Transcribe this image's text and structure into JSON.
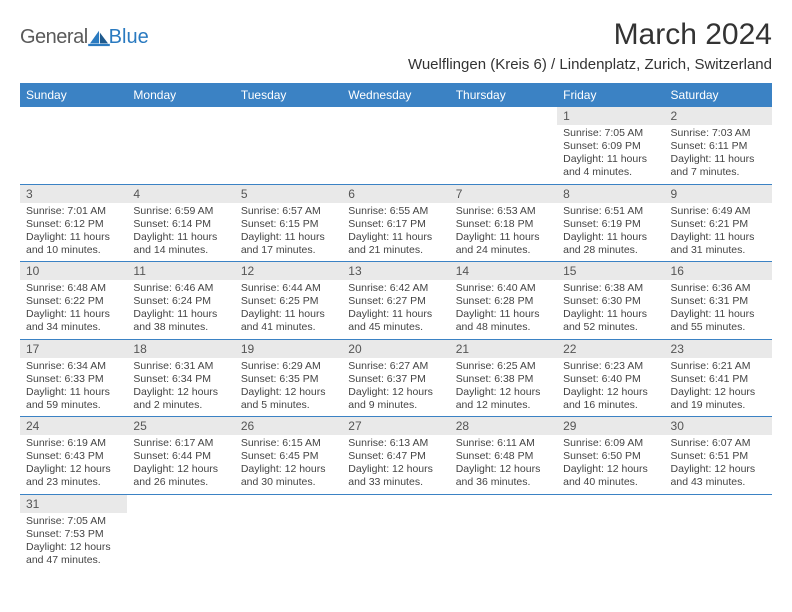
{
  "logo": {
    "text1": "General",
    "text2": "Blue"
  },
  "title": "March 2024",
  "subtitle": "Wuelflingen (Kreis 6) / Lindenplatz, Zurich, Switzerland",
  "colors": {
    "header_bg": "#3b82c4",
    "header_fg": "#ffffff",
    "daynum_bg": "#e9e9e9",
    "border": "#3b82c4",
    "logo_gray": "#5a5a5a",
    "logo_blue": "#2a7ac0"
  },
  "dayHeaders": [
    "Sunday",
    "Monday",
    "Tuesday",
    "Wednesday",
    "Thursday",
    "Friday",
    "Saturday"
  ],
  "weeks": [
    [
      null,
      null,
      null,
      null,
      null,
      {
        "n": "1",
        "sr": "Sunrise: 7:05 AM",
        "ss": "Sunset: 6:09 PM",
        "dl": "Daylight: 11 hours and 4 minutes."
      },
      {
        "n": "2",
        "sr": "Sunrise: 7:03 AM",
        "ss": "Sunset: 6:11 PM",
        "dl": "Daylight: 11 hours and 7 minutes."
      }
    ],
    [
      {
        "n": "3",
        "sr": "Sunrise: 7:01 AM",
        "ss": "Sunset: 6:12 PM",
        "dl": "Daylight: 11 hours and 10 minutes."
      },
      {
        "n": "4",
        "sr": "Sunrise: 6:59 AM",
        "ss": "Sunset: 6:14 PM",
        "dl": "Daylight: 11 hours and 14 minutes."
      },
      {
        "n": "5",
        "sr": "Sunrise: 6:57 AM",
        "ss": "Sunset: 6:15 PM",
        "dl": "Daylight: 11 hours and 17 minutes."
      },
      {
        "n": "6",
        "sr": "Sunrise: 6:55 AM",
        "ss": "Sunset: 6:17 PM",
        "dl": "Daylight: 11 hours and 21 minutes."
      },
      {
        "n": "7",
        "sr": "Sunrise: 6:53 AM",
        "ss": "Sunset: 6:18 PM",
        "dl": "Daylight: 11 hours and 24 minutes."
      },
      {
        "n": "8",
        "sr": "Sunrise: 6:51 AM",
        "ss": "Sunset: 6:19 PM",
        "dl": "Daylight: 11 hours and 28 minutes."
      },
      {
        "n": "9",
        "sr": "Sunrise: 6:49 AM",
        "ss": "Sunset: 6:21 PM",
        "dl": "Daylight: 11 hours and 31 minutes."
      }
    ],
    [
      {
        "n": "10",
        "sr": "Sunrise: 6:48 AM",
        "ss": "Sunset: 6:22 PM",
        "dl": "Daylight: 11 hours and 34 minutes."
      },
      {
        "n": "11",
        "sr": "Sunrise: 6:46 AM",
        "ss": "Sunset: 6:24 PM",
        "dl": "Daylight: 11 hours and 38 minutes."
      },
      {
        "n": "12",
        "sr": "Sunrise: 6:44 AM",
        "ss": "Sunset: 6:25 PM",
        "dl": "Daylight: 11 hours and 41 minutes."
      },
      {
        "n": "13",
        "sr": "Sunrise: 6:42 AM",
        "ss": "Sunset: 6:27 PM",
        "dl": "Daylight: 11 hours and 45 minutes."
      },
      {
        "n": "14",
        "sr": "Sunrise: 6:40 AM",
        "ss": "Sunset: 6:28 PM",
        "dl": "Daylight: 11 hours and 48 minutes."
      },
      {
        "n": "15",
        "sr": "Sunrise: 6:38 AM",
        "ss": "Sunset: 6:30 PM",
        "dl": "Daylight: 11 hours and 52 minutes."
      },
      {
        "n": "16",
        "sr": "Sunrise: 6:36 AM",
        "ss": "Sunset: 6:31 PM",
        "dl": "Daylight: 11 hours and 55 minutes."
      }
    ],
    [
      {
        "n": "17",
        "sr": "Sunrise: 6:34 AM",
        "ss": "Sunset: 6:33 PM",
        "dl": "Daylight: 11 hours and 59 minutes."
      },
      {
        "n": "18",
        "sr": "Sunrise: 6:31 AM",
        "ss": "Sunset: 6:34 PM",
        "dl": "Daylight: 12 hours and 2 minutes."
      },
      {
        "n": "19",
        "sr": "Sunrise: 6:29 AM",
        "ss": "Sunset: 6:35 PM",
        "dl": "Daylight: 12 hours and 5 minutes."
      },
      {
        "n": "20",
        "sr": "Sunrise: 6:27 AM",
        "ss": "Sunset: 6:37 PM",
        "dl": "Daylight: 12 hours and 9 minutes."
      },
      {
        "n": "21",
        "sr": "Sunrise: 6:25 AM",
        "ss": "Sunset: 6:38 PM",
        "dl": "Daylight: 12 hours and 12 minutes."
      },
      {
        "n": "22",
        "sr": "Sunrise: 6:23 AM",
        "ss": "Sunset: 6:40 PM",
        "dl": "Daylight: 12 hours and 16 minutes."
      },
      {
        "n": "23",
        "sr": "Sunrise: 6:21 AM",
        "ss": "Sunset: 6:41 PM",
        "dl": "Daylight: 12 hours and 19 minutes."
      }
    ],
    [
      {
        "n": "24",
        "sr": "Sunrise: 6:19 AM",
        "ss": "Sunset: 6:43 PM",
        "dl": "Daylight: 12 hours and 23 minutes."
      },
      {
        "n": "25",
        "sr": "Sunrise: 6:17 AM",
        "ss": "Sunset: 6:44 PM",
        "dl": "Daylight: 12 hours and 26 minutes."
      },
      {
        "n": "26",
        "sr": "Sunrise: 6:15 AM",
        "ss": "Sunset: 6:45 PM",
        "dl": "Daylight: 12 hours and 30 minutes."
      },
      {
        "n": "27",
        "sr": "Sunrise: 6:13 AM",
        "ss": "Sunset: 6:47 PM",
        "dl": "Daylight: 12 hours and 33 minutes."
      },
      {
        "n": "28",
        "sr": "Sunrise: 6:11 AM",
        "ss": "Sunset: 6:48 PM",
        "dl": "Daylight: 12 hours and 36 minutes."
      },
      {
        "n": "29",
        "sr": "Sunrise: 6:09 AM",
        "ss": "Sunset: 6:50 PM",
        "dl": "Daylight: 12 hours and 40 minutes."
      },
      {
        "n": "30",
        "sr": "Sunrise: 6:07 AM",
        "ss": "Sunset: 6:51 PM",
        "dl": "Daylight: 12 hours and 43 minutes."
      }
    ],
    [
      {
        "n": "31",
        "sr": "Sunrise: 7:05 AM",
        "ss": "Sunset: 7:53 PM",
        "dl": "Daylight: 12 hours and 47 minutes."
      },
      null,
      null,
      null,
      null,
      null,
      null
    ]
  ]
}
